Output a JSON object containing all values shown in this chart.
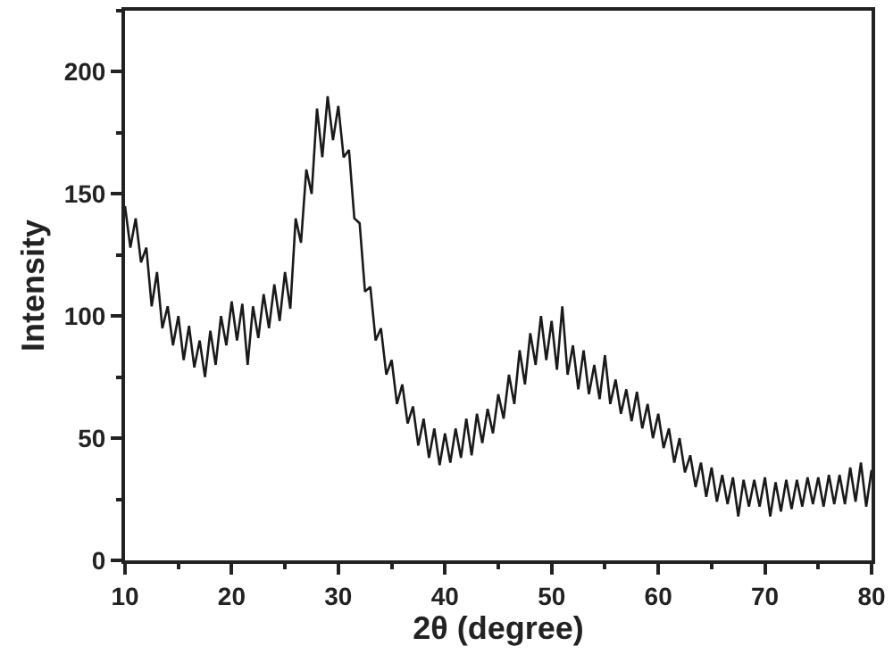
{
  "chart_data": {
    "type": "line",
    "xlabel": "2θ (degree)",
    "ylabel": "Intensity",
    "xlim": [
      10,
      80
    ],
    "xticks": [
      10,
      20,
      30,
      40,
      50,
      60,
      70,
      80
    ],
    "ylim": [
      0,
      225
    ],
    "yticks": [
      0,
      50,
      100,
      150,
      200
    ],
    "marker": "none",
    "line_style": "solid",
    "series": [
      {
        "color": "#1a1a1a",
        "x": [
          10,
          10.5,
          11,
          11.5,
          12,
          12.5,
          13,
          13.5,
          14,
          14.5,
          15,
          15.5,
          16,
          16.5,
          17,
          17.5,
          18,
          18.5,
          19,
          19.5,
          20,
          20.5,
          21,
          21.5,
          22,
          22.5,
          23,
          23.5,
          24,
          24.5,
          25,
          25.5,
          26,
          26.5,
          27,
          27.5,
          28,
          28.5,
          29,
          29.5,
          30,
          30.5,
          31,
          31.5,
          32,
          32.5,
          33,
          33.5,
          34,
          34.5,
          35,
          35.5,
          36,
          36.5,
          37,
          37.5,
          38,
          38.5,
          39,
          39.5,
          40,
          40.5,
          41,
          41.5,
          42,
          42.5,
          43,
          43.5,
          44,
          44.5,
          45,
          45.5,
          46,
          46.5,
          47,
          47.5,
          48,
          48.5,
          49,
          49.5,
          50,
          50.5,
          51,
          51.5,
          52,
          52.5,
          53,
          53.5,
          54,
          54.5,
          55,
          55.5,
          56,
          56.5,
          57,
          57.5,
          58,
          58.5,
          59,
          59.5,
          60,
          60.5,
          61,
          61.5,
          62,
          62.5,
          63,
          63.5,
          64,
          64.5,
          65,
          65.5,
          66,
          66.5,
          67,
          67.5,
          68,
          68.5,
          69,
          69.5,
          70,
          70.5,
          71,
          71.5,
          72,
          72.5,
          73,
          73.5,
          74,
          74.5,
          75,
          75.5,
          76,
          76.5,
          77,
          77.5,
          78,
          78.5,
          79,
          79.5,
          80
        ],
        "values": [
          145,
          128,
          140,
          122,
          128,
          104,
          118,
          95,
          104,
          88,
          100,
          82,
          96,
          79,
          90,
          75,
          94,
          80,
          100,
          88,
          106,
          90,
          105,
          80,
          104,
          91,
          109,
          95,
          113,
          98,
          118,
          103,
          140,
          130,
          160,
          150,
          185,
          165,
          190,
          172,
          186,
          165,
          168,
          140,
          138,
          110,
          112,
          90,
          95,
          76,
          82,
          64,
          72,
          56,
          63,
          47,
          58,
          42,
          54,
          39,
          52,
          40,
          54,
          42,
          58,
          43,
          60,
          48,
          62,
          52,
          68,
          58,
          76,
          64,
          86,
          72,
          93,
          80,
          100,
          82,
          98,
          78,
          104,
          76,
          88,
          70,
          86,
          68,
          80,
          66,
          84,
          64,
          74,
          60,
          70,
          57,
          69,
          54,
          64,
          50,
          60,
          46,
          54,
          40,
          50,
          36,
          43,
          30,
          40,
          26,
          38,
          24,
          35,
          23,
          34,
          18,
          33,
          22,
          33,
          22,
          34,
          18,
          32,
          20,
          33,
          21,
          33,
          22,
          34,
          23,
          34,
          22,
          35,
          23,
          35,
          23,
          38,
          24,
          40,
          22,
          37
        ]
      }
    ]
  }
}
